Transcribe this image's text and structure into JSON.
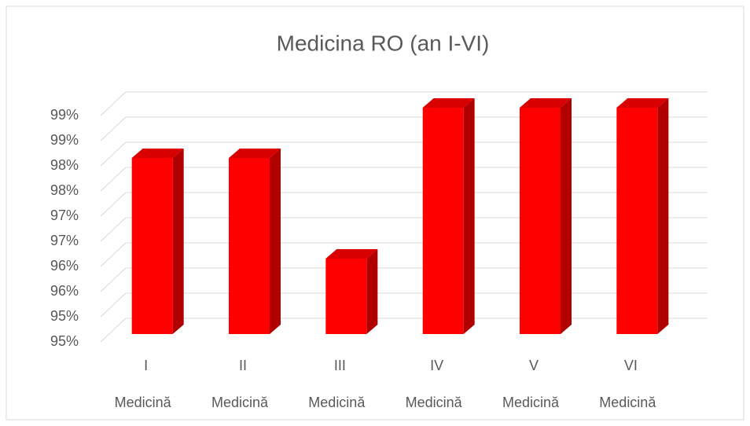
{
  "chart_data": {
    "type": "bar3d",
    "title": "Medicina RO (an I-VI)",
    "categories": [
      "I",
      "II",
      "III",
      "IV",
      "V",
      "VI"
    ],
    "subcategories": [
      "Medicină",
      "Medicină",
      "Medicină",
      "Medicină",
      "Medicină",
      "Medicină"
    ],
    "values": [
      98,
      98,
      96,
      99,
      99,
      99
    ],
    "color": "#ff0000",
    "ylim": [
      94.5,
      99
    ],
    "yticks": [
      {
        "value": 94.5,
        "label": "95%"
      },
      {
        "value": 95,
        "label": "95%"
      },
      {
        "value": 95.5,
        "label": "96%"
      },
      {
        "value": 96,
        "label": "96%"
      },
      {
        "value": 96.5,
        "label": "97%"
      },
      {
        "value": 97,
        "label": "97%"
      },
      {
        "value": 97.5,
        "label": "98%"
      },
      {
        "value": 98,
        "label": "98%"
      },
      {
        "value": 98.5,
        "label": "99%"
      },
      {
        "value": 99,
        "label": "99%"
      }
    ],
    "grid": true
  }
}
